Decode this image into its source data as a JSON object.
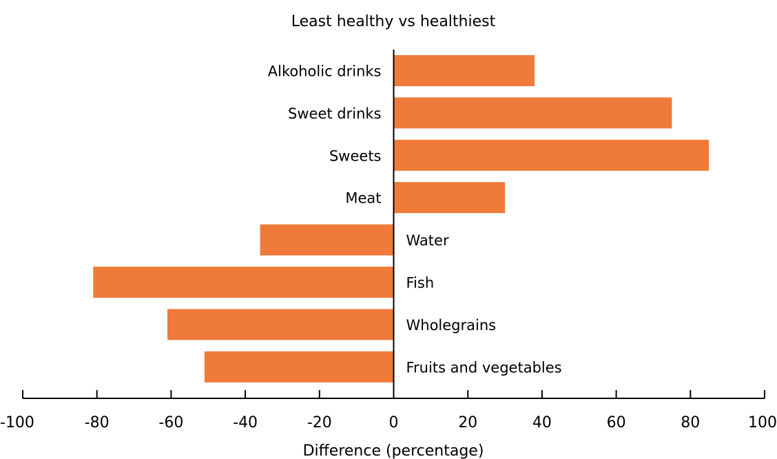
{
  "chart_data": {
    "type": "bar",
    "orientation": "horizontal",
    "title": "Least healthy vs healthiest",
    "xlabel": "Difference (percentage)",
    "ylabel": "",
    "xlim": [
      -100,
      100
    ],
    "xticks": [
      "-100",
      "-80",
      "-60",
      "-40",
      "-20",
      "0",
      "20",
      "40",
      "60",
      "80",
      "100"
    ],
    "categories": [
      "Alkoholic drinks",
      "Sweet drinks",
      "Sweets",
      "Meat",
      "Water",
      "Fish",
      "Wholegrains",
      "Fruits and vegetables"
    ],
    "values": [
      38,
      75,
      85,
      30,
      -36,
      -81,
      -61,
      -51
    ],
    "grid": false,
    "legend": "none"
  },
  "colors": {
    "bar": "#f07a3a",
    "axis": "#000000",
    "text": "#000000",
    "background": "#ffffff"
  }
}
